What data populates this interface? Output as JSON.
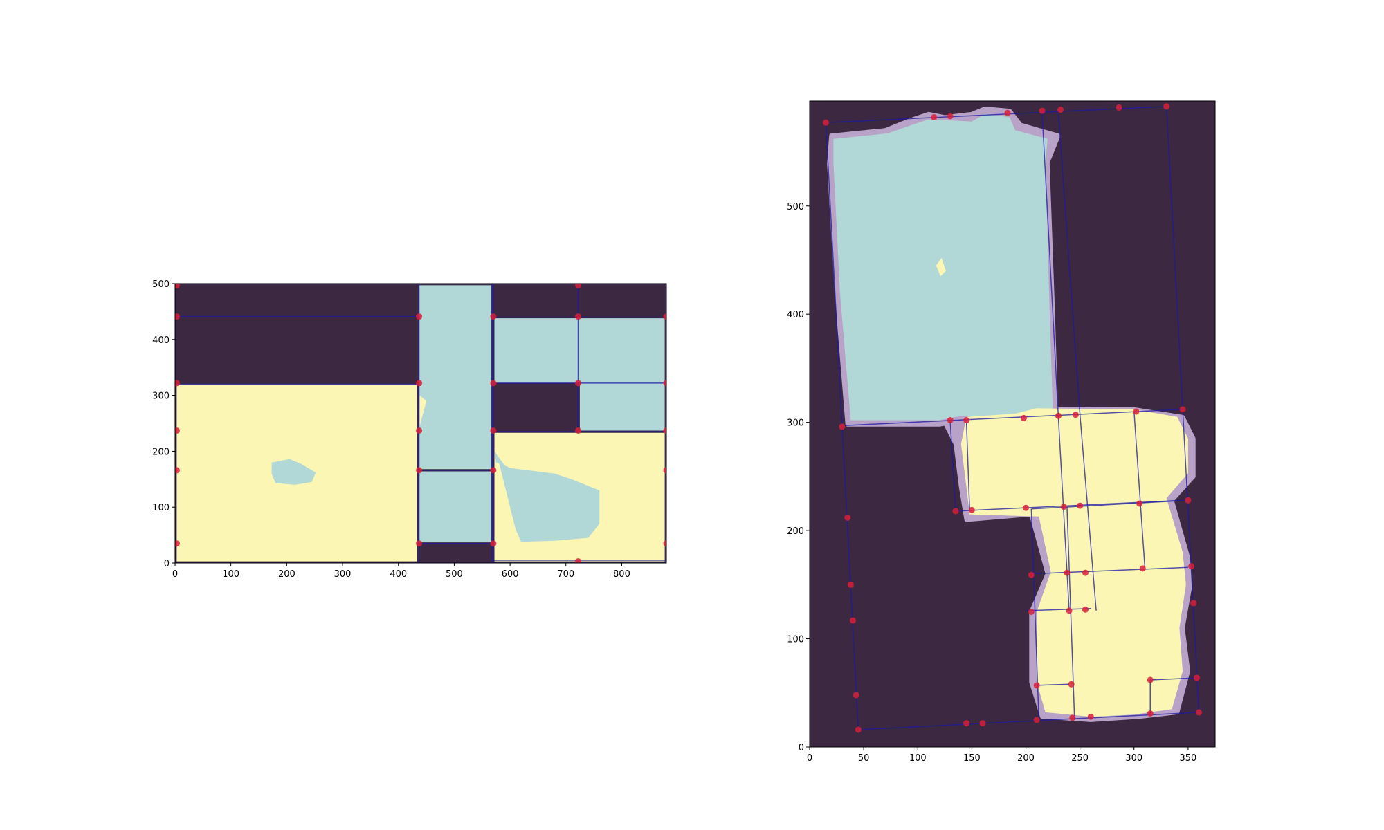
{
  "colors": {
    "background": "#3d2841",
    "teal_region": "#b1d8d6",
    "yellow_region": "#fcf6b4",
    "boundary": "#b9a2c8",
    "grid_line": "#1a1aa0",
    "corner_point": "#d81f3a"
  },
  "chart_data": [
    {
      "type": "heatmap",
      "title": "",
      "xlabel": "",
      "ylabel": "",
      "xlim": [
        0,
        880
      ],
      "ylim": [
        0,
        500
      ],
      "x_ticks": [
        "0",
        "100",
        "200",
        "300",
        "400",
        "500",
        "600",
        "700",
        "800"
      ],
      "y_ticks": [
        "0",
        "100",
        "200",
        "300",
        "400",
        "500"
      ],
      "regions": [
        {
          "color": "yellow",
          "polygon": [
            [
              3,
              3
            ],
            [
              433,
              3
            ],
            [
              433,
              320
            ],
            [
              3,
              320
            ]
          ]
        },
        {
          "color": "teal",
          "polygon": [
            [
              173,
              180
            ],
            [
              205,
              186
            ],
            [
              225,
              178
            ],
            [
              252,
              162
            ],
            [
              245,
              145
            ],
            [
              215,
              140
            ],
            [
              180,
              143
            ],
            [
              173,
              160
            ]
          ]
        },
        {
          "color": "teal",
          "polygon": [
            [
              437,
              37
            ],
            [
              567,
              37
            ],
            [
              567,
              164
            ],
            [
              437,
              164
            ]
          ]
        },
        {
          "color": "teal",
          "polygon": [
            [
              437,
              168
            ],
            [
              567,
              168
            ],
            [
              567,
              497
            ],
            [
              437,
              497
            ]
          ]
        },
        {
          "color": "yellow",
          "polygon": [
            [
              437,
              240
            ],
            [
              450,
              290
            ],
            [
              438,
              300
            ]
          ]
        },
        {
          "color": "teal",
          "polygon": [
            [
              572,
              322
            ],
            [
              877,
              322
            ],
            [
              877,
              438
            ],
            [
              572,
              438
            ]
          ]
        },
        {
          "color": "teal",
          "polygon": [
            [
              725,
              237
            ],
            [
              877,
              237
            ],
            [
              877,
              322
            ],
            [
              725,
              322
            ]
          ]
        },
        {
          "color": "yellow",
          "polygon": [
            [
              572,
              3
            ],
            [
              877,
              3
            ],
            [
              877,
              233
            ],
            [
              572,
              233
            ]
          ]
        },
        {
          "color": "teal",
          "polygon": [
            [
              580,
              180
            ],
            [
              600,
              170
            ],
            [
              680,
              160
            ],
            [
              710,
              150
            ],
            [
              760,
              130
            ],
            [
              760,
              70
            ],
            [
              740,
              45
            ],
            [
              680,
              40
            ],
            [
              620,
              38
            ],
            [
              610,
              60
            ]
          ]
        },
        {
          "color": "teal",
          "polygon": [
            [
              572,
              200
            ],
            [
              590,
              175
            ],
            [
              575,
              180
            ]
          ]
        }
      ],
      "lines": [
        [
          [
            0,
            0
          ],
          [
            880,
            0
          ]
        ],
        [
          [
            0,
            500
          ],
          [
            880,
            500
          ]
        ],
        [
          [
            0,
            0
          ],
          [
            0,
            500
          ]
        ],
        [
          [
            880,
            0
          ],
          [
            880,
            500
          ]
        ],
        [
          [
            0,
            441
          ],
          [
            437,
            441
          ]
        ],
        [
          [
            0,
            320
          ],
          [
            437,
            320
          ]
        ],
        [
          [
            437,
            0
          ],
          [
            437,
            500
          ]
        ],
        [
          [
            437,
            166
          ],
          [
            567,
            166
          ]
        ],
        [
          [
            437,
            35
          ],
          [
            567,
            35
          ]
        ],
        [
          [
            567,
            0
          ],
          [
            567,
            500
          ]
        ],
        [
          [
            570,
            0
          ],
          [
            570,
            500
          ]
        ],
        [
          [
            570,
            440
          ],
          [
            880,
            440
          ]
        ],
        [
          [
            570,
            322
          ],
          [
            722,
            322
          ]
        ],
        [
          [
            722,
            235
          ],
          [
            722,
            500
          ]
        ],
        [
          [
            570,
            235
          ],
          [
            880,
            235
          ]
        ],
        [
          [
            722,
            322
          ],
          [
            880,
            322
          ]
        ],
        [
          [
            570,
            5
          ],
          [
            880,
            5
          ]
        ]
      ],
      "points": [
        [
          3,
          497
        ],
        [
          722,
          497
        ],
        [
          3,
          441
        ],
        [
          437,
          441
        ],
        [
          570,
          441
        ],
        [
          722,
          441
        ],
        [
          880,
          441
        ],
        [
          3,
          322
        ],
        [
          437,
          322
        ],
        [
          570,
          322
        ],
        [
          722,
          322
        ],
        [
          880,
          322
        ],
        [
          3,
          237
        ],
        [
          437,
          237
        ],
        [
          570,
          237
        ],
        [
          722,
          237
        ],
        [
          880,
          237
        ],
        [
          3,
          166
        ],
        [
          437,
          166
        ],
        [
          570,
          166
        ],
        [
          880,
          166
        ],
        [
          3,
          35
        ],
        [
          437,
          35
        ],
        [
          570,
          35
        ],
        [
          880,
          35
        ],
        [
          722,
          3
        ]
      ]
    },
    {
      "type": "heatmap",
      "title": "",
      "xlabel": "",
      "ylabel": "",
      "xlim": [
        0,
        375
      ],
      "ylim": [
        0,
        597
      ],
      "x_ticks": [
        "0",
        "50",
        "100",
        "150",
        "200",
        "250",
        "300",
        "350"
      ],
      "y_ticks": [
        "0",
        "100",
        "200",
        "300",
        "400",
        "500"
      ],
      "boundary_regions": [
        [
          [
            20,
            565
          ],
          [
            70,
            570
          ],
          [
            95,
            580
          ],
          [
            110,
            585
          ],
          [
            125,
            582
          ],
          [
            150,
            585
          ],
          [
            162,
            590
          ],
          [
            185,
            588
          ],
          [
            195,
            575
          ],
          [
            230,
            565
          ],
          [
            220,
            540
          ],
          [
            225,
            400
          ],
          [
            228,
            305
          ],
          [
            200,
            300
          ],
          [
            140,
            302
          ],
          [
            120,
            298
          ],
          [
            35,
            298
          ],
          [
            25,
            420
          ],
          [
            18,
            540
          ]
        ],
        [
          [
            125,
            300
          ],
          [
            170,
            305
          ],
          [
            210,
            312
          ],
          [
            300,
            312
          ],
          [
            345,
            305
          ],
          [
            355,
            285
          ],
          [
            355,
            250
          ],
          [
            335,
            228
          ],
          [
            350,
            175
          ],
          [
            352,
            150
          ],
          [
            345,
            110
          ],
          [
            350,
            70
          ],
          [
            340,
            32
          ],
          [
            305,
            28
          ],
          [
            260,
            25
          ],
          [
            215,
            28
          ],
          [
            205,
            60
          ],
          [
            205,
            125
          ],
          [
            220,
            160
          ],
          [
            205,
            215
          ],
          [
            145,
            210
          ],
          [
            140,
            240
          ],
          [
            135,
            280
          ]
        ]
      ],
      "regions": [
        {
          "color": "teal",
          "polygon": [
            [
              22,
              562
            ],
            [
              72,
              567
            ],
            [
              95,
              575
            ],
            [
              110,
              580
            ],
            [
              150,
              578
            ],
            [
              162,
              585
            ],
            [
              185,
              582
            ],
            [
              190,
              570
            ],
            [
              220,
              562
            ],
            [
              218,
              540
            ],
            [
              222,
              400
            ],
            [
              225,
              308
            ],
            [
              200,
              303
            ],
            [
              140,
              306
            ],
            [
              120,
              302
            ],
            [
              38,
              302
            ],
            [
              28,
              420
            ],
            [
              22,
              540
            ]
          ]
        },
        {
          "color": "yellow",
          "polygon": [
            [
              117,
              445
            ],
            [
              122,
              452
            ],
            [
              126,
              440
            ],
            [
              121,
              435
            ]
          ]
        },
        {
          "color": "yellow",
          "polygon": [
            [
              145,
              305
            ],
            [
              190,
              308
            ],
            [
              210,
              313
            ],
            [
              300,
              312
            ],
            [
              340,
              305
            ],
            [
              350,
              285
            ],
            [
              350,
              253
            ],
            [
              330,
              230
            ],
            [
              345,
              180
            ],
            [
              348,
              150
            ],
            [
              342,
              110
            ],
            [
              345,
              70
            ],
            [
              335,
              35
            ],
            [
              300,
              30
            ],
            [
              260,
              28
            ],
            [
              218,
              32
            ],
            [
              210,
              60
            ],
            [
              210,
              125
            ],
            [
              223,
              162
            ],
            [
              212,
              213
            ],
            [
              148,
              215
            ],
            [
              145,
              240
            ],
            [
              140,
              280
            ]
          ]
        }
      ],
      "lines": [
        [
          [
            15,
            577
          ],
          [
            330,
            592
          ]
        ],
        [
          [
            15,
            577
          ],
          [
            45,
            16
          ]
        ],
        [
          [
            45,
            16
          ],
          [
            360,
            32
          ]
        ],
        [
          [
            330,
            592
          ],
          [
            360,
            32
          ]
        ],
        [
          [
            30,
            297
          ],
          [
            345,
            312
          ]
        ],
        [
          [
            215,
            586
          ],
          [
            230,
            305
          ]
        ],
        [
          [
            230,
            586
          ],
          [
            250,
            307
          ]
        ],
        [
          [
            130,
            301
          ],
          [
            135,
            218
          ]
        ],
        [
          [
            145,
            301
          ],
          [
            148,
            218
          ]
        ],
        [
          [
            135,
            218
          ],
          [
            345,
            228
          ]
        ],
        [
          [
            205,
            220
          ],
          [
            350,
            228
          ]
        ],
        [
          [
            205,
            160
          ],
          [
            350,
            166
          ]
        ],
        [
          [
            200,
            126
          ],
          [
            260,
            128
          ]
        ],
        [
          [
            210,
            57
          ],
          [
            240,
            58
          ]
        ],
        [
          [
            315,
            62
          ],
          [
            360,
            64
          ]
        ],
        [
          [
            230,
            305
          ],
          [
            240,
            126
          ]
        ],
        [
          [
            250,
            307
          ],
          [
            265,
            126
          ]
        ],
        [
          [
            300,
            310
          ],
          [
            310,
            166
          ]
        ],
        [
          [
            205,
            220
          ],
          [
            212,
            25
          ]
        ],
        [
          [
            238,
            222
          ],
          [
            245,
            25
          ]
        ],
        [
          [
            315,
            62
          ],
          [
            315,
            30
          ]
        ]
      ],
      "points": [
        [
          15,
          577
        ],
        [
          115,
          582
        ],
        [
          130,
          583
        ],
        [
          183,
          586
        ],
        [
          215,
          588
        ],
        [
          232,
          589
        ],
        [
          286,
          591
        ],
        [
          330,
          592
        ],
        [
          30,
          296
        ],
        [
          198,
          304
        ],
        [
          230,
          306
        ],
        [
          246,
          307
        ],
        [
          302,
          310
        ],
        [
          345,
          312
        ],
        [
          130,
          302
        ],
        [
          145,
          302
        ],
        [
          135,
          218
        ],
        [
          150,
          219
        ],
        [
          200,
          221
        ],
        [
          235,
          222
        ],
        [
          250,
          223
        ],
        [
          305,
          225
        ],
        [
          350,
          228
        ],
        [
          35,
          212
        ],
        [
          205,
          159
        ],
        [
          238,
          161
        ],
        [
          255,
          161
        ],
        [
          308,
          165
        ],
        [
          353,
          167
        ],
        [
          38,
          150
        ],
        [
          40,
          117
        ],
        [
          205,
          125
        ],
        [
          240,
          126
        ],
        [
          255,
          127
        ],
        [
          355,
          133
        ],
        [
          43,
          48
        ],
        [
          210,
          57
        ],
        [
          242,
          58
        ],
        [
          315,
          62
        ],
        [
          358,
          64
        ],
        [
          45,
          16
        ],
        [
          145,
          22
        ],
        [
          160,
          22
        ],
        [
          210,
          25
        ],
        [
          243,
          27
        ],
        [
          260,
          28
        ],
        [
          315,
          31
        ],
        [
          360,
          32
        ]
      ]
    }
  ]
}
